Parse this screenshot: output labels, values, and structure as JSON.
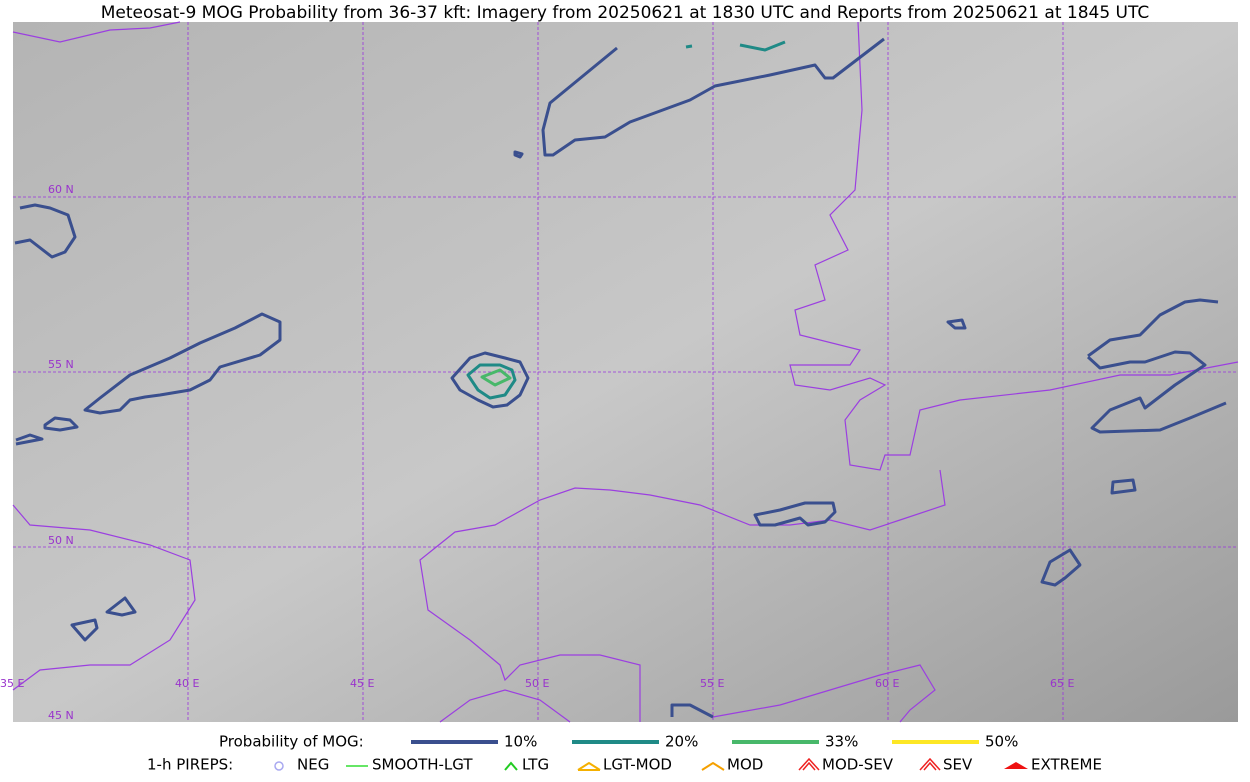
{
  "title": "Meteosat-9 MOG Probability from 36-37 kft: Imagery from 20250621 at 1830 UTC and Reports from 20250621 at 1845 UTC",
  "map": {
    "lat_labels": [
      "60 N",
      "55 N",
      "50 N",
      "45 N"
    ],
    "lon_labels": [
      "35 E",
      "40 E",
      "45 E",
      "50 E",
      "55 E",
      "60 E",
      "65 E"
    ]
  },
  "legend": {
    "probability": {
      "title": "Probability of MOG:",
      "items": [
        {
          "label": "10%",
          "color": "#3a4f8e"
        },
        {
          "label": "20%",
          "color": "#1f8a86"
        },
        {
          "label": "33%",
          "color": "#48b86a"
        },
        {
          "label": "50%",
          "color": "#fde725"
        }
      ]
    },
    "pireps": {
      "title": "1-h PIREPS:",
      "items": [
        {
          "label": "NEG",
          "color": "#a8a8f0"
        },
        {
          "label": "SMOOTH-LGT",
          "color": "#33dd33"
        },
        {
          "label": "LTG",
          "color": "#22cc22"
        },
        {
          "label": "LGT-MOD",
          "color": "#f5b000"
        },
        {
          "label": "MOD",
          "color": "#f5a000"
        },
        {
          "label": "MOD-SEV",
          "color": "#ee2222"
        },
        {
          "label": "SEV",
          "color": "#ee2222"
        },
        {
          "label": "EXTREME",
          "color": "#ee1111"
        }
      ]
    }
  }
}
